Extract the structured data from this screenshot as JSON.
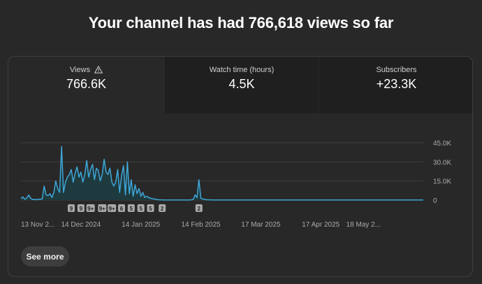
{
  "headline": "Your channel has had 766,618 views so far",
  "tabs": [
    {
      "label": "Views",
      "value": "766.6K",
      "icon": "warning-icon",
      "active": true
    },
    {
      "label": "Watch time (hours)",
      "value": "4.5K",
      "active": false
    },
    {
      "label": "Subscribers",
      "value": "+23.3K",
      "active": false
    }
  ],
  "see_more": "See more",
  "colors": {
    "line": "#3ea6d8",
    "fill": "#1e3a3e",
    "grid": "#3f3f3f",
    "badge": "#aaaaaa"
  },
  "chart_data": {
    "type": "line",
    "series": [
      {
        "values": [
          1200,
          2500,
          600,
          1500,
          4000,
          1500,
          400,
          500,
          300,
          600,
          700,
          800,
          11000,
          4000,
          3500,
          5000,
          2000,
          6000,
          15000,
          9000,
          6000,
          42000,
          6000,
          14000,
          18000,
          20000,
          24000,
          14000,
          21000,
          26000,
          18000,
          22000,
          14000,
          20000,
          31000,
          18000,
          24000,
          28000,
          16000,
          25000,
          23000,
          15000,
          20000,
          32000,
          22000,
          20000,
          25000,
          14000,
          11000,
          14000,
          24000,
          6000,
          19000,
          27000,
          4000,
          30000,
          5000,
          16000,
          3000,
          12000,
          5000,
          9000,
          3000,
          6000,
          2000,
          3000,
          2000,
          1500,
          1000,
          800,
          500,
          300,
          200,
          150,
          100,
          100,
          100,
          100,
          100,
          100,
          100,
          100,
          100,
          100,
          100,
          100,
          100,
          100,
          200,
          400,
          4000,
          2000,
          16000,
          1500,
          800,
          500,
          300,
          200,
          150,
          100,
          100,
          100,
          100,
          100,
          100,
          100,
          100,
          100,
          100,
          100,
          100,
          100,
          100,
          100,
          100,
          100,
          100,
          100,
          100,
          100,
          100,
          100,
          100,
          100,
          100,
          100,
          100,
          100,
          100,
          100,
          100,
          100,
          100,
          100,
          100,
          100,
          100,
          100,
          100,
          100,
          100,
          100,
          100,
          100,
          100,
          100,
          100,
          100,
          100,
          100,
          100,
          100,
          100,
          100,
          100,
          100,
          100,
          100,
          100,
          100,
          100,
          100,
          100,
          100,
          100,
          100,
          100,
          100,
          100,
          100,
          100,
          100,
          100,
          100,
          100,
          100,
          100,
          100,
          100,
          100,
          100,
          100,
          100,
          100,
          100,
          100,
          100,
          100,
          100,
          100,
          100,
          100,
          100,
          100,
          100,
          100,
          100,
          100,
          100,
          100,
          100,
          100,
          100,
          100,
          100,
          100,
          100,
          100,
          100
        ]
      }
    ],
    "ylim": [
      0,
      45000
    ],
    "yticks": [
      "45.0K",
      "30.0K",
      "15.0K",
      "0"
    ],
    "ytick_values": [
      45000,
      30000,
      15000,
      0
    ],
    "x_labels": [
      "13 Nov 2...",
      "14 Dec 2024",
      "14 Jan 2025",
      "14 Feb 2025",
      "17 Mar 2025",
      "17 Apr 2025",
      "18 May 2..."
    ],
    "x_label_index": [
      0,
      31,
      62,
      93,
      124,
      155,
      186
    ],
    "badges": [
      {
        "label": "9",
        "index": 26
      },
      {
        "label": "9",
        "index": 31
      },
      {
        "label": "9+",
        "index": 36
      },
      {
        "label": "9+",
        "index": 42
      },
      {
        "label": "9+",
        "index": 47
      },
      {
        "label": "6",
        "index": 52
      },
      {
        "label": "5",
        "index": 57
      },
      {
        "label": "5",
        "index": 62
      },
      {
        "label": "5",
        "index": 67
      },
      {
        "label": "2",
        "index": 73
      },
      {
        "label": "2",
        "index": 92
      }
    ],
    "grid": true
  }
}
